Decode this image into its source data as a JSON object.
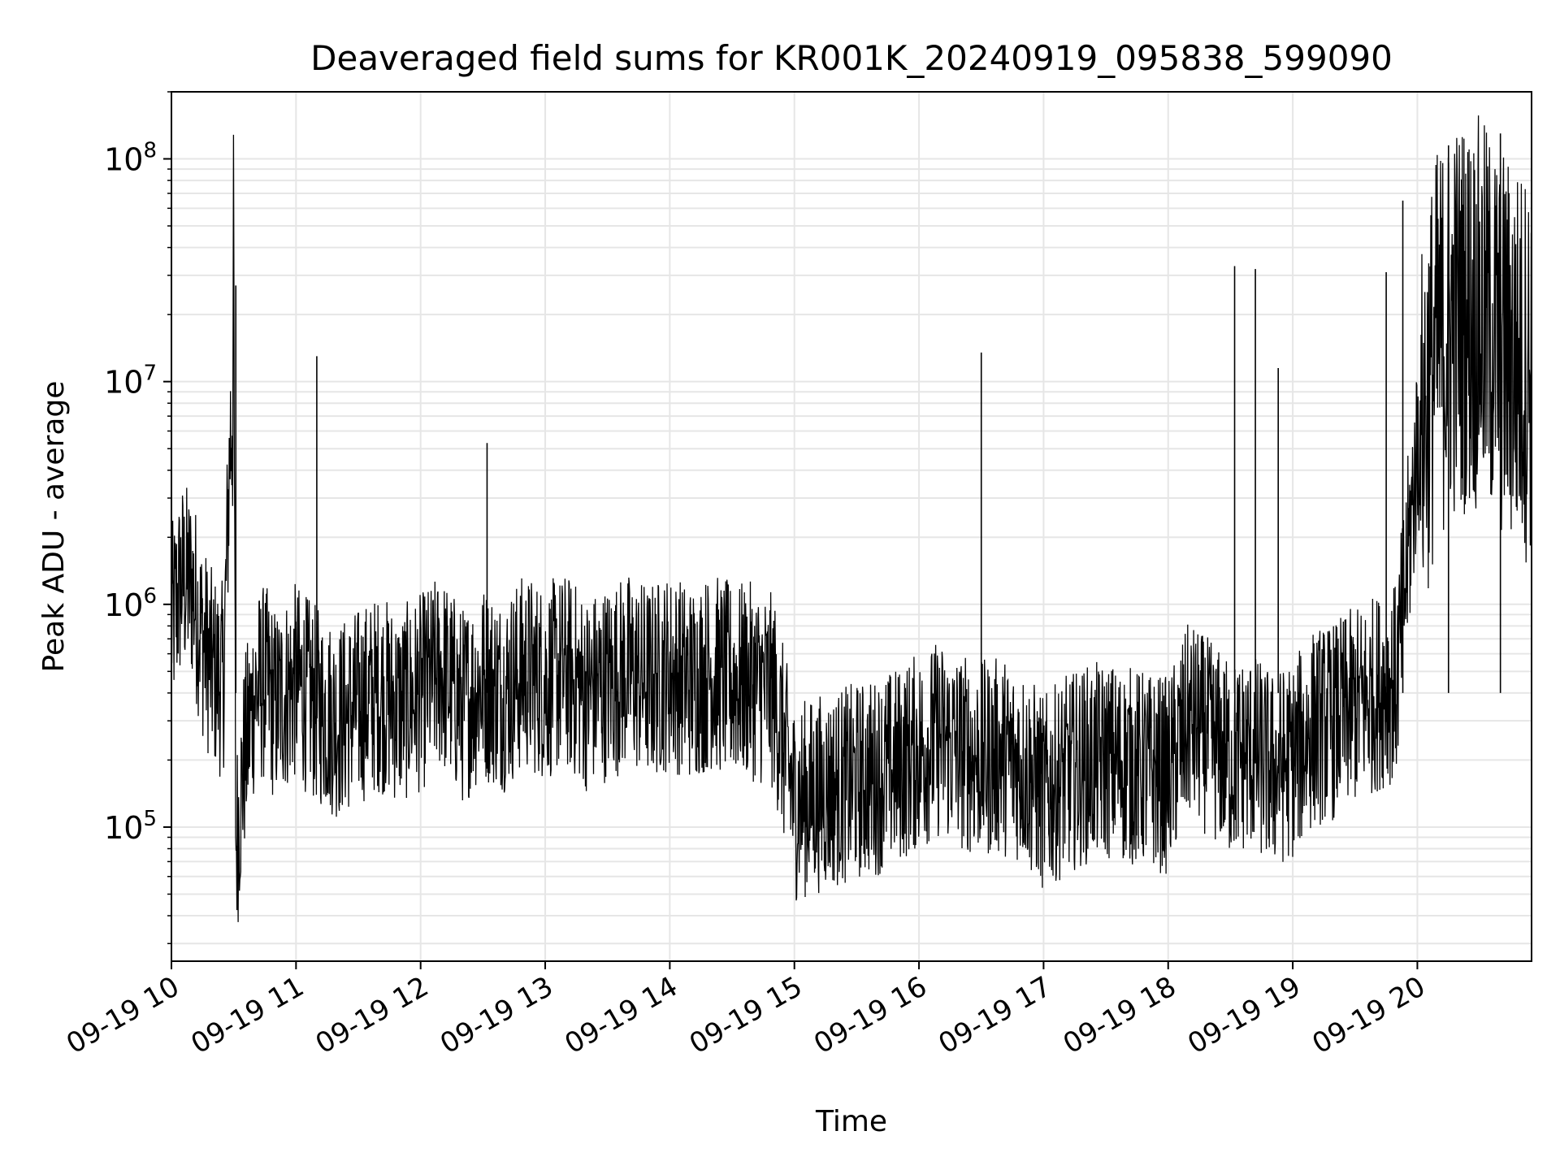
{
  "chart_data": {
    "type": "line",
    "title": "Deaveraged field sums for KR001K_20240919_095838_599090",
    "xlabel": "Time",
    "ylabel": "Peak ADU - average",
    "y_scale": "log",
    "ylim": [
      25000,
      200000000
    ],
    "xlim": [
      "2024-09-19 10:00",
      "2024-09-19 20:55"
    ],
    "x_ticks": [
      {
        "x": "2024-09-19 10:00",
        "label": "09-19 10"
      },
      {
        "x": "2024-09-19 11:00",
        "label": "09-19 11"
      },
      {
        "x": "2024-09-19 12:00",
        "label": "09-19 12"
      },
      {
        "x": "2024-09-19 13:00",
        "label": "09-19 13"
      },
      {
        "x": "2024-09-19 14:00",
        "label": "09-19 14"
      },
      {
        "x": "2024-09-19 15:00",
        "label": "09-19 15"
      },
      {
        "x": "2024-09-19 16:00",
        "label": "09-19 16"
      },
      {
        "x": "2024-09-19 17:00",
        "label": "09-19 17"
      },
      {
        "x": "2024-09-19 18:00",
        "label": "09-19 18"
      },
      {
        "x": "2024-09-19 19:00",
        "label": "09-19 19"
      },
      {
        "x": "2024-09-19 20:00",
        "label": "09-19 20"
      }
    ],
    "y_ticks": [
      {
        "value": 100000,
        "base": "10",
        "exp": "5"
      },
      {
        "value": 1000000,
        "base": "10",
        "exp": "6"
      },
      {
        "value": 10000000,
        "base": "10",
        "exp": "7"
      },
      {
        "value": 100000000,
        "base": "10",
        "exp": "8"
      }
    ],
    "grid": true,
    "line_color": "#000000",
    "grid_color": "#e6e6e6",
    "series": [
      {
        "x": [
          "2024-09-19 10:00",
          "2024-09-19 10:05",
          "2024-09-19 10:10",
          "2024-09-19 10:15",
          "2024-09-19 10:20",
          "2024-09-19 10:25",
          "2024-09-19 10:30",
          "2024-09-19 10:31",
          "2024-09-19 10:35",
          "2024-09-19 10:40",
          "2024-09-19 10:45",
          "2024-09-19 10:50",
          "2024-09-19 10:55",
          "2024-09-19 11:00",
          "2024-09-19 11:10",
          "2024-09-19 11:20",
          "2024-09-19 11:30",
          "2024-09-19 11:40",
          "2024-09-19 11:50",
          "2024-09-19 12:00",
          "2024-09-19 12:10",
          "2024-09-19 12:20",
          "2024-09-19 12:30",
          "2024-09-19 12:40",
          "2024-09-19 12:50",
          "2024-09-19 13:00",
          "2024-09-19 13:10",
          "2024-09-19 13:20",
          "2024-09-19 13:30",
          "2024-09-19 13:40",
          "2024-09-19 13:50",
          "2024-09-19 14:00",
          "2024-09-19 14:10",
          "2024-09-19 14:20",
          "2024-09-19 14:30",
          "2024-09-19 14:40",
          "2024-09-19 14:50",
          "2024-09-19 15:00",
          "2024-09-19 15:10",
          "2024-09-19 15:20",
          "2024-09-19 15:30",
          "2024-09-19 15:40",
          "2024-09-19 15:50",
          "2024-09-19 16:00",
          "2024-09-19 16:10",
          "2024-09-19 16:20",
          "2024-09-19 16:30",
          "2024-09-19 16:40",
          "2024-09-19 16:50",
          "2024-09-19 17:00",
          "2024-09-19 17:10",
          "2024-09-19 17:20",
          "2024-09-19 17:30",
          "2024-09-19 17:40",
          "2024-09-19 17:50",
          "2024-09-19 18:00",
          "2024-09-19 18:10",
          "2024-09-19 18:20",
          "2024-09-19 18:30",
          "2024-09-19 18:40",
          "2024-09-19 18:50",
          "2024-09-19 19:00",
          "2024-09-19 19:10",
          "2024-09-19 19:20",
          "2024-09-19 19:30",
          "2024-09-19 19:40",
          "2024-09-19 19:50",
          "2024-09-19 20:00",
          "2024-09-19 20:10",
          "2024-09-19 20:20",
          "2024-09-19 20:30",
          "2024-09-19 20:40",
          "2024-09-19 20:50"
        ],
        "y": [
          800000,
          1300000,
          1200000,
          700000,
          500000,
          450000,
          20000000,
          80000,
          200000,
          400000,
          450000,
          350000,
          400000,
          450000,
          350000,
          300000,
          350000,
          400000,
          350000,
          400000,
          500000,
          350000,
          450000,
          400000,
          500000,
          450000,
          500000,
          400000,
          450000,
          500000,
          450000,
          500000,
          450000,
          500000,
          450000,
          450000,
          400000,
          130000,
          140000,
          150000,
          160000,
          170000,
          190000,
          220000,
          250000,
          220000,
          200000,
          210000,
          190000,
          140000,
          170000,
          190000,
          200000,
          190000,
          180000,
          170000,
          300000,
          250000,
          200000,
          220000,
          180000,
          200000,
          280000,
          300000,
          350000,
          400000,
          450000,
          5000000,
          15000000,
          20000000,
          20000000,
          15000000,
          12000000
        ]
      }
    ],
    "spikes": [
      {
        "x": "2024-09-19 10:31",
        "y": 27000000
      },
      {
        "x": "2024-09-19 11:10",
        "y": 13000000
      },
      {
        "x": "2024-09-19 12:32",
        "y": 5300000
      },
      {
        "x": "2024-09-19 16:30",
        "y": 13500000
      },
      {
        "x": "2024-09-19 18:32",
        "y": 33000000
      },
      {
        "x": "2024-09-19 18:42",
        "y": 32000000
      },
      {
        "x": "2024-09-19 18:53",
        "y": 11500000
      },
      {
        "x": "2024-09-19 19:45",
        "y": 31000000
      },
      {
        "x": "2024-09-19 19:53",
        "y": 65000000
      },
      {
        "x": "2024-09-19 20:15",
        "y": 115000000
      },
      {
        "x": "2024-09-19 20:40",
        "y": 130000000
      }
    ]
  }
}
